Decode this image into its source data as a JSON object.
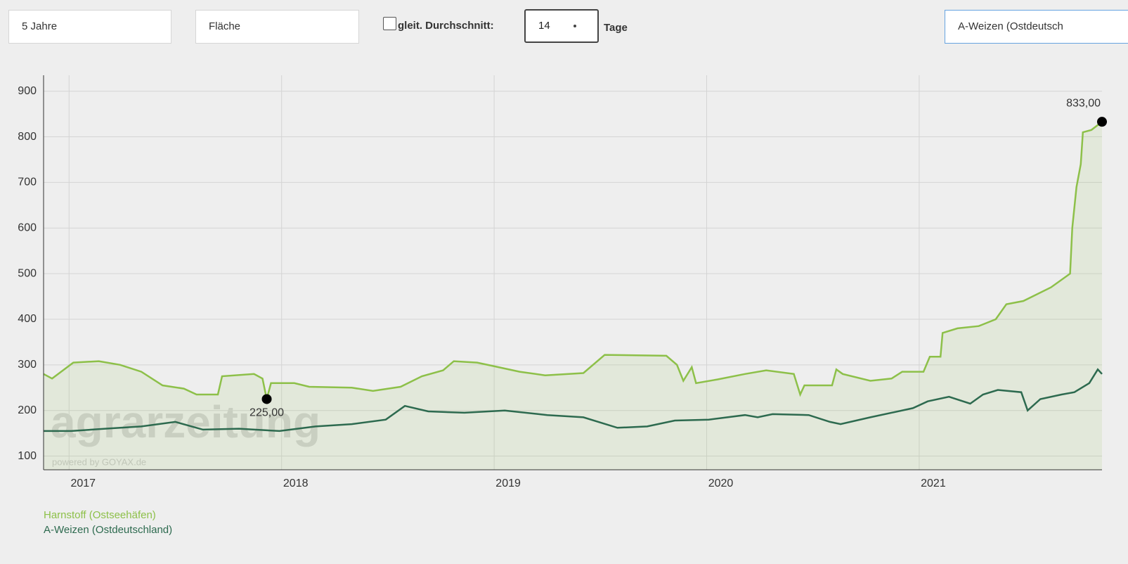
{
  "controls": {
    "period": "5 Jahre",
    "chart_style": "Fläche",
    "moving_average_label": "gleit. Durchschnitt:",
    "moving_average_days": "14",
    "days_unit": "Tage",
    "comparison": "A-Weizen (Ostdeutsch"
  },
  "chart_data": {
    "type": "line",
    "watermark": "agrarzeitung",
    "watermark_sub": "powered by GOYAX.de",
    "xlim": [
      2016.88,
      2021.86
    ],
    "xticks": [
      2017,
      2018,
      2019,
      2020,
      2021
    ],
    "ylim": [
      70,
      935
    ],
    "yticks": [
      100,
      200,
      300,
      400,
      500,
      600,
      700,
      800,
      900
    ],
    "grid": true,
    "series": [
      {
        "name": "Harnstoff (Ostseehäfen)",
        "color": "#8dc049",
        "fill": true,
        "x": [
          2016.88,
          2016.92,
          2017.02,
          2017.14,
          2017.24,
          2017.34,
          2017.44,
          2017.54,
          2017.6,
          2017.7,
          2017.72,
          2017.87,
          2017.91,
          2017.93,
          2017.95,
          2018.06,
          2018.13,
          2018.33,
          2018.43,
          2018.56,
          2018.66,
          2018.76,
          2018.81,
          2018.92,
          2018.99,
          2019.12,
          2019.24,
          2019.42,
          2019.52,
          2019.81,
          2019.86,
          2019.89,
          2019.93,
          2019.95,
          2020.05,
          2020.18,
          2020.28,
          2020.41,
          2020.44,
          2020.46,
          2020.59,
          2020.61,
          2020.64,
          2020.77,
          2020.87,
          2020.92,
          2021.02,
          2021.05,
          2021.1,
          2021.11,
          2021.18,
          2021.28,
          2021.36,
          2021.41,
          2021.49,
          2021.62,
          2021.71,
          2021.72,
          2021.74,
          2021.76,
          2021.77,
          2021.81,
          2021.86
        ],
        "values": [
          280,
          270,
          305,
          308,
          300,
          285,
          255,
          248,
          235,
          235,
          275,
          280,
          270,
          225,
          260,
          260,
          252,
          250,
          243,
          252,
          275,
          288,
          308,
          305,
          298,
          285,
          277,
          282,
          322,
          320,
          300,
          265,
          295,
          260,
          268,
          280,
          288,
          280,
          235,
          255,
          255,
          290,
          280,
          265,
          270,
          285,
          285,
          318,
          318,
          370,
          380,
          385,
          400,
          433,
          440,
          470,
          500,
          600,
          690,
          740,
          810,
          815,
          833
        ]
      },
      {
        "name": "A-Weizen (Ostdeutschland)",
        "color": "#2d6a4f",
        "x": [
          2016.88,
          2017.01,
          2017.17,
          2017.34,
          2017.5,
          2017.63,
          2017.8,
          2017.99,
          2018.16,
          2018.33,
          2018.49,
          2018.58,
          2018.69,
          2018.86,
          2019.05,
          2019.25,
          2019.42,
          2019.58,
          2019.72,
          2019.85,
          2020.01,
          2020.18,
          2020.24,
          2020.31,
          2020.48,
          2020.58,
          2020.63,
          2020.77,
          2020.97,
          2021.04,
          2021.14,
          2021.24,
          2021.3,
          2021.37,
          2021.48,
          2021.51,
          2021.57,
          2021.67,
          2021.73,
          2021.8,
          2021.84,
          2021.86
        ],
        "values": [
          155,
          155,
          160,
          165,
          175,
          158,
          160,
          155,
          165,
          170,
          180,
          210,
          198,
          195,
          200,
          190,
          185,
          162,
          165,
          178,
          180,
          190,
          185,
          192,
          190,
          175,
          170,
          185,
          205,
          220,
          230,
          215,
          235,
          245,
          240,
          200,
          225,
          235,
          240,
          260,
          290,
          280
        ]
      }
    ],
    "annotations": [
      {
        "label": "833,00",
        "x": 2021.86,
        "value": 833,
        "position": "above"
      },
      {
        "label": "225,00",
        "x": 2017.93,
        "value": 225,
        "position": "below"
      }
    ]
  }
}
